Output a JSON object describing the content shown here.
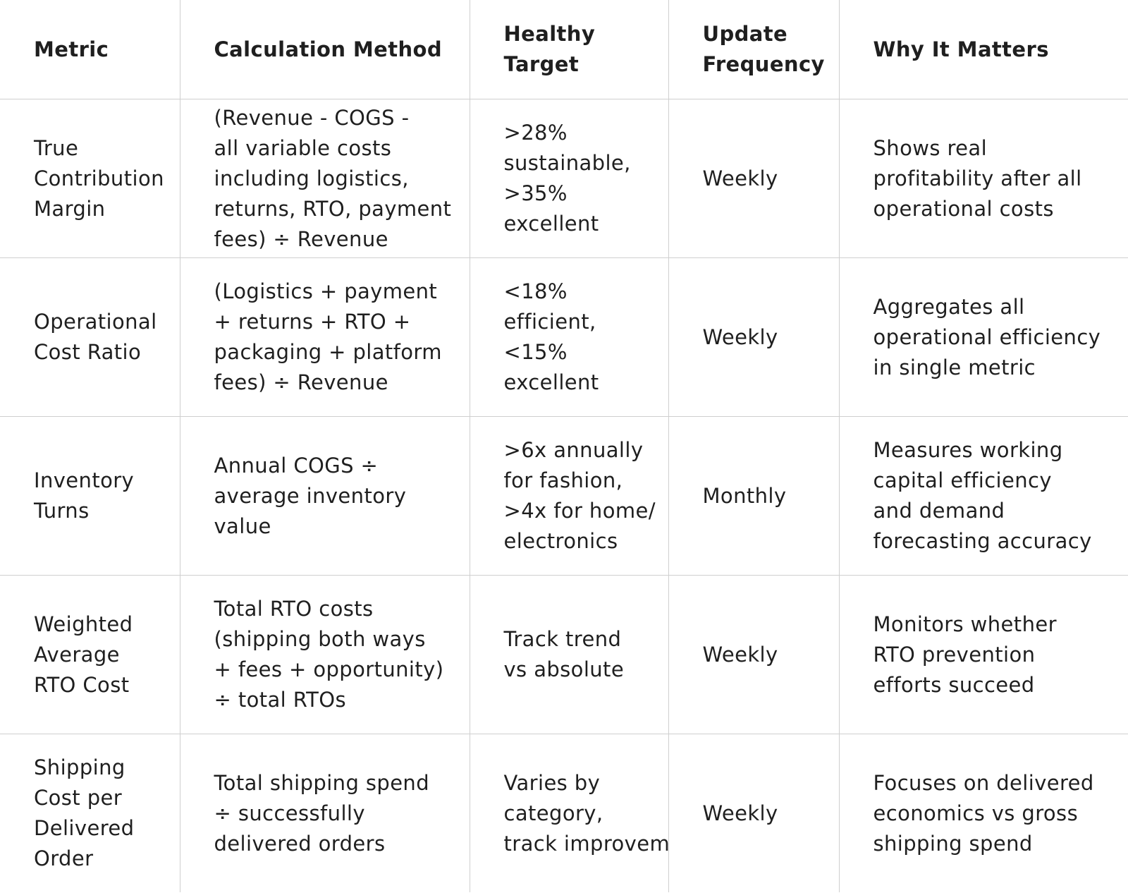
{
  "headers": [
    "Metric",
    "Calculation Method",
    "Healthy\nTarget",
    "Update\nFrequency",
    "Why It Matters"
  ],
  "rows": [
    {
      "metric": "True\nContribution\nMargin",
      "calculation": "(Revenue - COGS -\nall variable costs\nincluding logistics,\nreturns, RTO, payment\nfees) ÷ Revenue",
      "target": ">28%\nsustainable,\n>35%\nexcellent",
      "frequency": "Weekly",
      "why": "Shows real\nprofitability after all\noperational costs"
    },
    {
      "metric": "Operational\nCost Ratio",
      "calculation": "(Logistics + payment\n+ returns + RTO +\npackaging + platform\nfees) ÷ Revenue",
      "target": "<18%\nefficient,\n<15%\nexcellent",
      "frequency": "Weekly",
      "why": "Aggregates all\noperational efficiency\nin single metric"
    },
    {
      "metric": "Inventory\nTurns",
      "calculation": "Annual COGS ÷\naverage inventory\nvalue",
      "target": ">6x annually\nfor fashion,\n>4x for home/\nelectronics",
      "frequency": "Monthly",
      "why": "Measures working\ncapital efficiency\nand demand\nforecasting accuracy"
    },
    {
      "metric": "Weighted\nAverage\nRTO Cost",
      "calculation": "Total RTO costs\n(shipping both ways\n+ fees + opportunity)\n÷ total RTOs",
      "target": "Track trend\nvs absolute",
      "frequency": "Weekly",
      "why": "Monitors whether\nRTO prevention\nefforts succeed"
    },
    {
      "metric": "Shipping\nCost per\nDelivered\nOrder",
      "calculation": "Total shipping spend\n÷ successfully\ndelivered orders",
      "target": "Varies by\ncategory,\ntrack improvem",
      "frequency": "Weekly",
      "why": "Focuses on delivered\neconomics vs gross\nshipping spend"
    }
  ]
}
